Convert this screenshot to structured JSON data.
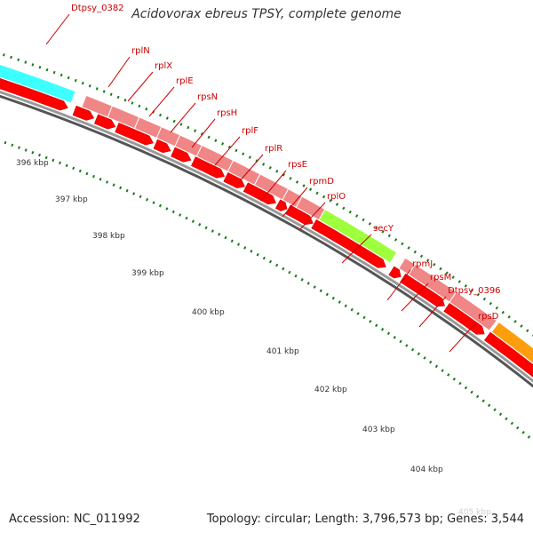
{
  "title": "Acidovorax ebreus TPSY, complete genome",
  "footer": {
    "accession": "Accession: NC_011992",
    "summary": "Topology: circular; Length: 3,796,573 bp; Genes: 3,544"
  },
  "colors": {
    "cds": "#ff0000",
    "gene": "#f08080",
    "label": "#cc0000",
    "tick": "#1a7a1a",
    "backbone": "#999999",
    "cyan_gene": "#33ffff",
    "secY": "#99ff33",
    "adk": "#ff9900",
    "blue_gene": "#0000ff",
    "olive_gene": "#6b8e23"
  },
  "gene_labels": [
    "Dtpsy_0382",
    "rplN",
    "rplX",
    "rplE",
    "rpsN",
    "rpsH",
    "rplF",
    "rplR",
    "rpsE",
    "rpmD",
    "rplO",
    "secY",
    "rpmJ",
    "rpsM",
    "Dtpsy_0396",
    "rpsD"
  ],
  "kbp_ticks": [
    "396 kbp",
    "397 kbp",
    "398 kbp",
    "399 kbp",
    "400 kbp",
    "401 kbp",
    "402 kbp",
    "403 kbp",
    "404 kbp",
    "405 kbp"
  ]
}
